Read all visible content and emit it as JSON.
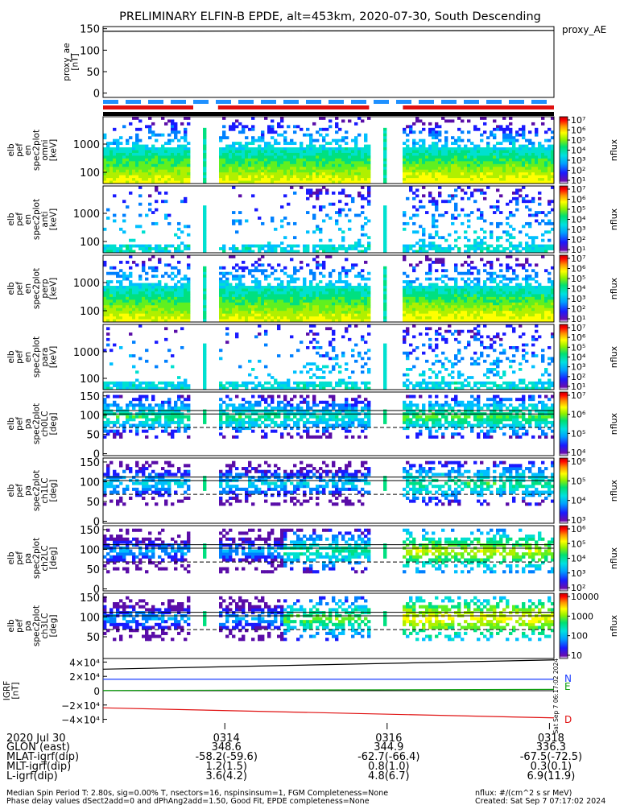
{
  "title": "PRELIMINARY ELFIN-B EPDE, alt=453km, 2020-07-30, South Descending",
  "colors": {
    "ae_line": "#000000",
    "bar_blue": "#1e90ff",
    "bar_red": "#e01010",
    "bar_black": "#000000",
    "grf_n": "#1a3cff",
    "grf_e": "#10a010",
    "grf_d": "#e01010"
  },
  "chart_data": [
    {
      "id": "proxy_ae",
      "type": "line",
      "ylabel": "proxy_ae\n[nT]",
      "legend": "proxy_AE",
      "ylim": [
        -10,
        155
      ],
      "yticks": [
        "150",
        "100",
        "50",
        "0"
      ],
      "ytick_values": [
        150,
        100,
        50,
        0
      ],
      "series": [
        {
          "name": "proxy_AE",
          "x": [
            0,
            1
          ],
          "values": [
            144,
            146
          ]
        }
      ]
    },
    {
      "id": "status_bars",
      "type": "bar",
      "rows": [
        {
          "name": "sci-zone",
          "style": "dashed",
          "color": "blue"
        },
        {
          "name": "nominal",
          "style": "segments",
          "color": "red",
          "segments": [
            [
              0.0,
              0.2
            ],
            [
              0.255,
              0.59
            ],
            [
              0.665,
              1.0
            ]
          ]
        },
        {
          "name": "eclipse",
          "style": "solid",
          "color": "black"
        }
      ]
    },
    {
      "id": "pef_omni",
      "type": "heatmap",
      "ylabel": "elb\npef\nen\nspec2plot\nomni\n[keV]",
      "ytick_labels": [
        "1000",
        "100"
      ],
      "colorbar": {
        "label": "nflux",
        "ticks": [
          "10⁷",
          "10⁶",
          "10⁵",
          "10⁴",
          "10³",
          "10²",
          "10¹"
        ]
      }
    },
    {
      "id": "pef_anti",
      "type": "heatmap",
      "ylabel": "elb\npef\nen\nspec2plot\nanti\n[keV]",
      "ytick_labels": [
        "1000",
        "100"
      ],
      "colorbar": {
        "label": "nflux",
        "ticks": [
          "10⁷",
          "10⁶",
          "10⁵",
          "10⁴",
          "10³",
          "10²",
          "10¹"
        ]
      }
    },
    {
      "id": "pef_perp",
      "type": "heatmap",
      "ylabel": "elb\npef\nen\nspec2plot\nperp\n[keV]",
      "ytick_labels": [
        "1000",
        "100"
      ],
      "colorbar": {
        "label": "nflux",
        "ticks": [
          "10⁷",
          "10⁶",
          "10⁵",
          "10⁴",
          "10³",
          "10²",
          "10¹"
        ]
      }
    },
    {
      "id": "pef_para",
      "type": "heatmap",
      "ylabel": "elb\npef\nen\nspec2plot\npara\n[keV]",
      "ytick_labels": [
        "1000",
        "100"
      ],
      "colorbar": {
        "label": "nflux",
        "ticks": [
          "10⁷",
          "10⁶",
          "10⁵",
          "10⁴",
          "10³",
          "10²",
          "10¹"
        ]
      }
    },
    {
      "id": "pa_ch0LC",
      "type": "heatmap",
      "ylabel": "elb\npef\npa\nspec2plot\nch0LC\n[deg]",
      "yticks": [
        "150",
        "100",
        "50",
        "0"
      ],
      "ytick_values": [
        150,
        100,
        50,
        0
      ],
      "colorbar": {
        "label": "nflux",
        "ticks": [
          "10⁷",
          "10⁶",
          "10⁵",
          "10⁴"
        ]
      }
    },
    {
      "id": "pa_ch1LC",
      "type": "heatmap",
      "ylabel": "elb\npef\npa\nspec2plot\nch1LC\n[deg]",
      "yticks": [
        "150",
        "100",
        "50",
        "0"
      ],
      "ytick_values": [
        150,
        100,
        50,
        0
      ],
      "colorbar": {
        "label": "nflux",
        "ticks": [
          "10⁶",
          "10⁵",
          "10⁴",
          "10³"
        ]
      }
    },
    {
      "id": "pa_ch2LC",
      "type": "heatmap",
      "ylabel": "elb\npef\npa\nspec2plot\nch2LC\n[deg]",
      "yticks": [
        "150",
        "100",
        "50",
        "0"
      ],
      "ytick_values": [
        150,
        100,
        50,
        0
      ],
      "colorbar": {
        "label": "nflux",
        "ticks": [
          "10⁶",
          "10⁵",
          "10⁴",
          "10³",
          "10²"
        ]
      }
    },
    {
      "id": "pa_ch3LC",
      "type": "heatmap",
      "ylabel": "elb\npef\npa\nspec2plot\nch3LC\n[deg]",
      "yticks": [
        "150",
        "100",
        "50"
      ],
      "ytick_values": [
        150,
        100,
        50
      ],
      "colorbar": {
        "label": "nflux",
        "ticks": [
          "10000",
          "1000",
          "100",
          "10"
        ]
      }
    },
    {
      "id": "igrf",
      "type": "line",
      "ylabel": "IGRF\n[nT]",
      "ylim": [
        -45000,
        45000
      ],
      "yticks": [
        "4×10⁴",
        "2×10⁴",
        "0",
        "−2×10⁴",
        "−4×10⁴"
      ],
      "ytick_values": [
        40000,
        20000,
        0,
        -20000,
        -40000
      ],
      "legend": [
        "N",
        "E",
        "D"
      ],
      "series": [
        {
          "name": "N",
          "x": [
            0,
            1
          ],
          "values": [
            16000,
            16000
          ]
        },
        {
          "name": "E",
          "x": [
            0,
            1
          ],
          "values": [
            300,
            1800
          ]
        },
        {
          "name": "D",
          "x": [
            0,
            1
          ],
          "values": [
            -24000,
            -38000
          ]
        },
        {
          "name": "total",
          "x": [
            0,
            1
          ],
          "values": [
            30000,
            43000
          ]
        }
      ]
    }
  ],
  "stamp": "Sat Sep 7 06:17:02 2024",
  "xaxis": {
    "row_labels": [
      "2020 Jul 30",
      "GLON (east)",
      "MLAT-igrf(dip)",
      "MLT-igrf(dip)",
      "L-igrf(dip)"
    ],
    "columns": [
      {
        "pos": 0.27,
        "values": [
          "0314",
          "348.6",
          "-58.2(-59.6)",
          "1.2(1.5)",
          "3.6(4.2)"
        ]
      },
      {
        "pos": 0.63,
        "values": [
          "0316",
          "344.9",
          "-62.7(-66.4)",
          "0.8(1.0)",
          "4.8(6.7)"
        ]
      },
      {
        "pos": 0.99,
        "values": [
          "0318",
          "336.3",
          "-67.5(-72.5)",
          "0.3(0.1)",
          "6.9(11.9)"
        ]
      }
    ]
  },
  "footer": {
    "left1": "Median Spin Period T: 2.80s, sig=0.00% T, nsectors=16, nspinsinsum=1, FGM Completeness=None",
    "left2": "Phase delay values dSect2add=0 and dPhAng2add=1.50, Good Fit, EPDE completeness=None",
    "right1": "nflux: #/(cm^2 s sr MeV)",
    "right2": "Created: Sat Sep  7 07:17:02 2024"
  }
}
